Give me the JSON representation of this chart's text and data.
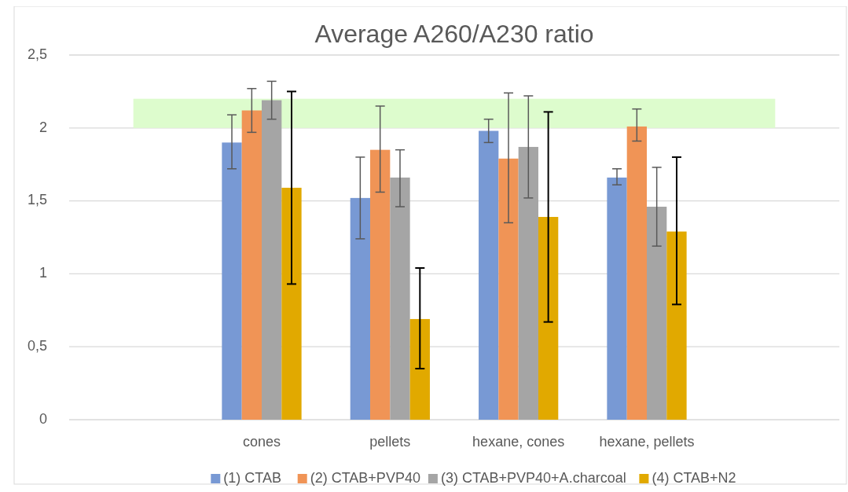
{
  "chart_data": {
    "type": "bar",
    "title": "Average A260/A230 ratio",
    "categories": [
      null,
      "cones",
      "pellets",
      "hexane, cones",
      "hexane, pellets",
      null
    ],
    "series": [
      {
        "name": "(1) CTAB",
        "color": "#7899d4",
        "values": [
          null,
          1.9,
          1.52,
          1.98,
          1.66,
          null
        ],
        "errors": [
          null,
          [
            1.72,
            2.09
          ],
          [
            1.24,
            1.8
          ],
          [
            1.9,
            2.06
          ],
          [
            1.61,
            1.72
          ],
          null
        ]
      },
      {
        "name": "(2) CTAB+PVP40",
        "color": "#f09456",
        "values": [
          null,
          2.12,
          1.85,
          1.79,
          2.01,
          null
        ],
        "errors": [
          null,
          [
            1.97,
            2.27
          ],
          [
            1.56,
            2.15
          ],
          [
            1.35,
            2.24
          ],
          [
            1.91,
            2.13
          ],
          null
        ]
      },
      {
        "name": "(3) CTAB+PVP40+A.charcoal",
        "color": "#a5a5a5",
        "values": [
          null,
          2.19,
          1.66,
          1.87,
          1.46,
          null
        ],
        "errors": [
          null,
          [
            2.06,
            2.32
          ],
          [
            1.46,
            1.85
          ],
          [
            1.52,
            2.22
          ],
          [
            1.19,
            1.73
          ],
          null
        ]
      },
      {
        "name": "(4) CTAB+N2",
        "color": "#e1a900",
        "values": [
          null,
          1.59,
          0.69,
          1.39,
          1.29,
          null
        ],
        "errors": [
          null,
          [
            0.93,
            2.25
          ],
          [
            0.35,
            1.04
          ],
          [
            0.67,
            2.11
          ],
          [
            0.79,
            1.8
          ],
          null
        ]
      }
    ],
    "ylim": [
      0,
      2.5
    ],
    "yticks": [
      0,
      {
        "value": 0.5,
        "label": "0,5"
      },
      1,
      {
        "value": 1.5,
        "label": "1,5"
      },
      2,
      {
        "value": 2.5,
        "label": "2,5"
      }
    ],
    "bands": [
      {
        "axis": "y",
        "from": 2,
        "to": 2.2,
        "color": "#ddfccd"
      }
    ],
    "grid": "y",
    "legend": "bottom"
  }
}
